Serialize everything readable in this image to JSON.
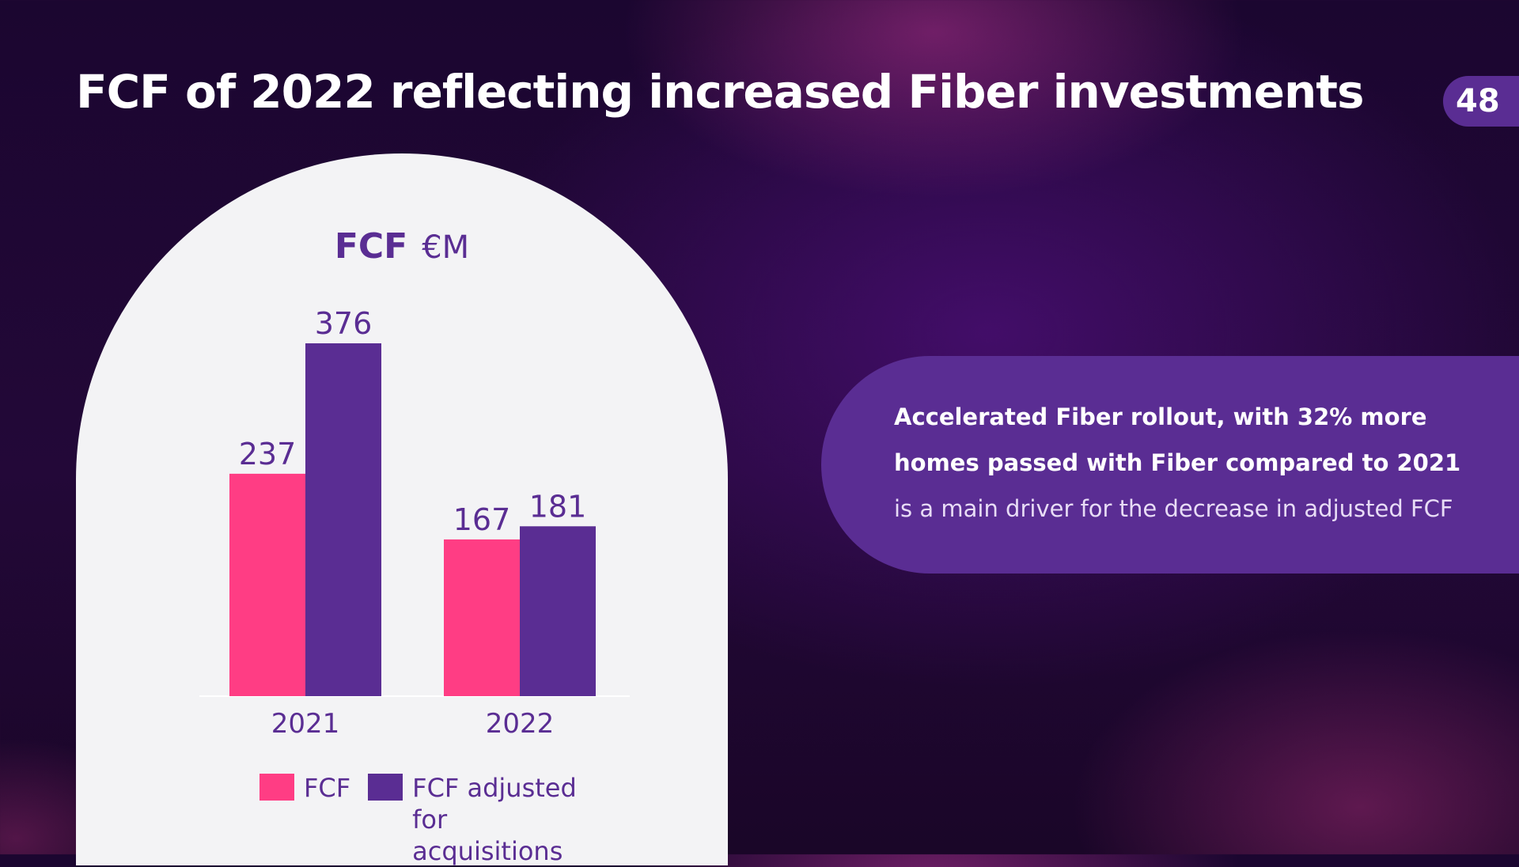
{
  "slide": {
    "title": "FCF of 2022 reflecting increased Fiber investments",
    "page_number": "48"
  },
  "callout": {
    "bold_text": "Accelerated Fiber rollout, with 32% more homes passed with Fiber compared to 2021",
    "regular_text": " is a main driver for the decrease in adjusted FCF"
  },
  "chart_data": {
    "type": "bar",
    "title": "FCF",
    "unit": "€M",
    "categories": [
      "2021",
      "2022"
    ],
    "series": [
      {
        "name": "FCF",
        "values": [
          237,
          167
        ],
        "color": "#ff3d84"
      },
      {
        "name": "FCF adjusted for acquisitions",
        "values": [
          376,
          181
        ],
        "color": "#5a2d93"
      }
    ],
    "ylim": [
      0,
      376
    ],
    "grid": false,
    "legend_position": "bottom"
  },
  "colors": {
    "accent_purple": "#5a2d93",
    "accent_pink": "#ff3d84",
    "card_background": "#f3f3f5"
  }
}
